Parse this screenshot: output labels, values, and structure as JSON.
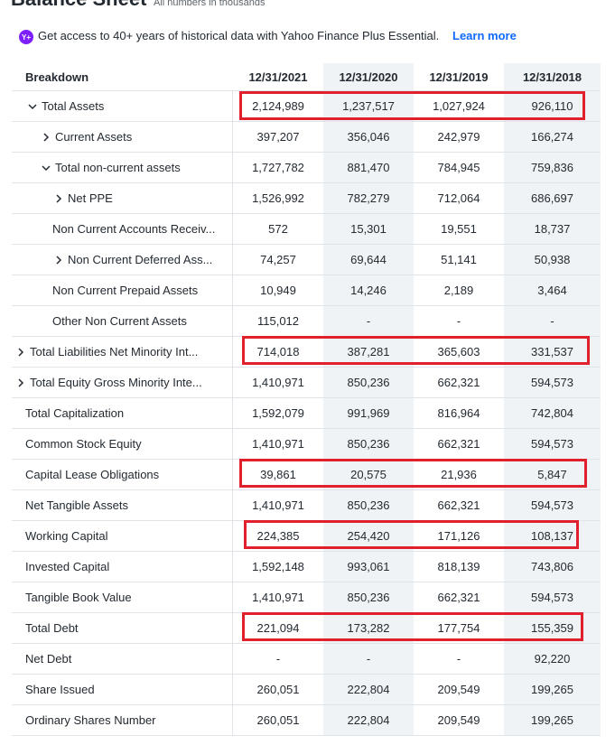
{
  "header": {
    "title": "Balance Sheet",
    "note": "All numbers in thousands"
  },
  "banner": {
    "text": "Get access to 40+ years of historical data with Yahoo Finance Plus Essential.",
    "link": "Learn more"
  },
  "table": {
    "columns": [
      "Breakdown",
      "12/31/2021",
      "12/31/2020",
      "12/31/2019",
      "12/31/2018"
    ],
    "rows": [
      {
        "label": "Total Assets",
        "values": [
          "2,124,989",
          "1,237,517",
          "1,027,924",
          "926,110"
        ]
      },
      {
        "label": "Current Assets",
        "values": [
          "397,207",
          "356,046",
          "242,979",
          "166,274"
        ]
      },
      {
        "label": "Total non-current assets",
        "values": [
          "1,727,782",
          "881,470",
          "784,945",
          "759,836"
        ]
      },
      {
        "label": "Net PPE",
        "values": [
          "1,526,992",
          "782,279",
          "712,064",
          "686,697"
        ]
      },
      {
        "label": "Non Current Accounts Receiv...",
        "values": [
          "572",
          "15,301",
          "19,551",
          "18,737"
        ]
      },
      {
        "label": "Non Current Deferred Ass...",
        "values": [
          "74,257",
          "69,644",
          "51,141",
          "50,938"
        ]
      },
      {
        "label": "Non Current Prepaid Assets",
        "values": [
          "10,949",
          "14,246",
          "2,189",
          "3,464"
        ]
      },
      {
        "label": "Other Non Current Assets",
        "values": [
          "115,012",
          "-",
          "-",
          "-"
        ]
      },
      {
        "label": "Total Liabilities Net Minority Int...",
        "values": [
          "714,018",
          "387,281",
          "365,603",
          "331,537"
        ]
      },
      {
        "label": "Total Equity Gross Minority Inte...",
        "values": [
          "1,410,971",
          "850,236",
          "662,321",
          "594,573"
        ]
      },
      {
        "label": "Total Capitalization",
        "values": [
          "1,592,079",
          "991,969",
          "816,964",
          "742,804"
        ]
      },
      {
        "label": "Common Stock Equity",
        "values": [
          "1,410,971",
          "850,236",
          "662,321",
          "594,573"
        ]
      },
      {
        "label": "Capital Lease Obligations",
        "values": [
          "39,861",
          "20,575",
          "21,936",
          "5,847"
        ]
      },
      {
        "label": "Net Tangible Assets",
        "values": [
          "1,410,971",
          "850,236",
          "662,321",
          "594,573"
        ]
      },
      {
        "label": "Working Capital",
        "values": [
          "224,385",
          "254,420",
          "171,126",
          "108,137"
        ]
      },
      {
        "label": "Invested Capital",
        "values": [
          "1,592,148",
          "993,061",
          "818,139",
          "743,806"
        ]
      },
      {
        "label": "Tangible Book Value",
        "values": [
          "1,410,971",
          "850,236",
          "662,321",
          "594,573"
        ]
      },
      {
        "label": "Total Debt",
        "values": [
          "221,094",
          "173,282",
          "177,754",
          "155,359"
        ]
      },
      {
        "label": "Net Debt",
        "values": [
          "-",
          "-",
          "-",
          "92,220"
        ]
      },
      {
        "label": "Share Issued",
        "values": [
          "260,051",
          "222,804",
          "209,549",
          "199,265"
        ]
      },
      {
        "label": "Ordinary Shares Number",
        "values": [
          "260,051",
          "222,804",
          "209,549",
          "199,265"
        ]
      }
    ]
  }
}
